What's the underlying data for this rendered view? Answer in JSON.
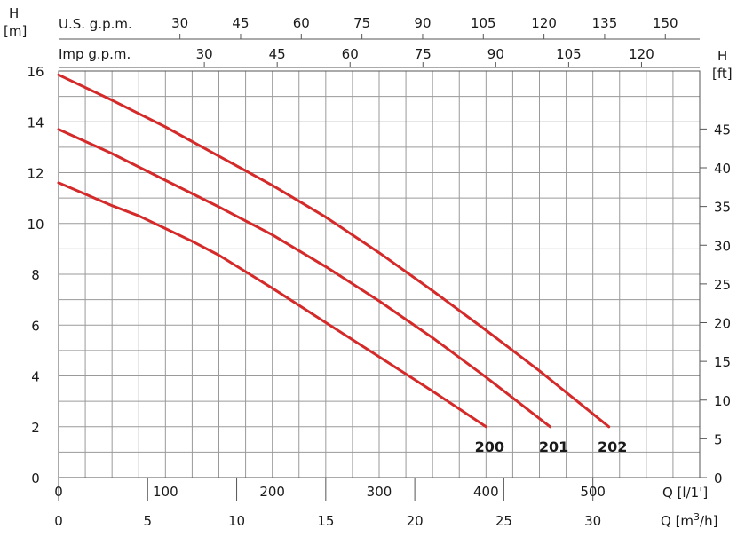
{
  "chart_data": {
    "type": "line",
    "title": "",
    "colors": {
      "curve": "#d42a2a",
      "grid": "#9a9a9a"
    },
    "grid": true,
    "x_axis": {
      "label": "Q [l/1']",
      "ticks": [
        "0",
        "100",
        "200",
        "300",
        "400",
        "500"
      ],
      "range": [
        0,
        600
      ]
    },
    "x2_axis": {
      "label": "Q [m",
      "sup": "3",
      "label_tail": "/h]",
      "ticks": [
        "0",
        "5",
        "10",
        "15",
        "20",
        "25",
        "30"
      ],
      "range": [
        0,
        36
      ]
    },
    "top_axis_us": {
      "label": "U.S. g.p.m.",
      "ticks": [
        "30",
        "45",
        "60",
        "75",
        "90",
        "105",
        "120",
        "135",
        "150"
      ]
    },
    "top_axis_imp": {
      "label": "Imp g.p.m.",
      "ticks": [
        "30",
        "45",
        "60",
        "75",
        "90",
        "105",
        "120"
      ]
    },
    "y_axis": {
      "label_top": "H",
      "label_bottom": "[m]",
      "ticks": [
        "0",
        "2",
        "4",
        "6",
        "8",
        "10",
        "12",
        "14",
        "16"
      ],
      "range": [
        0,
        16
      ]
    },
    "y2_axis": {
      "label_top": "H",
      "label_bottom": "[ft]",
      "ticks": [
        "0",
        "5",
        "10",
        "15",
        "20",
        "25",
        "30",
        "35",
        "40",
        "45"
      ]
    },
    "series": [
      {
        "name": "200",
        "x": [
          0,
          25,
          50,
          75,
          100,
          125,
          150,
          175,
          200,
          250,
          300,
          350,
          400
        ],
        "y": [
          11.6,
          11.15,
          10.7,
          10.3,
          9.8,
          9.3,
          8.75,
          8.1,
          7.45,
          6.1,
          4.75,
          3.4,
          2.0
        ]
      },
      {
        "name": "201",
        "x": [
          0,
          50,
          100,
          150,
          200,
          250,
          300,
          350,
          400,
          460
        ],
        "y": [
          13.7,
          12.75,
          11.7,
          10.65,
          9.55,
          8.3,
          6.95,
          5.5,
          3.95,
          2.0
        ]
      },
      {
        "name": "202",
        "x": [
          0,
          50,
          100,
          150,
          200,
          250,
          300,
          350,
          400,
          450,
          515
        ],
        "y": [
          15.85,
          14.85,
          13.8,
          12.65,
          11.5,
          10.25,
          8.85,
          7.35,
          5.8,
          4.2,
          2.0
        ]
      }
    ]
  }
}
